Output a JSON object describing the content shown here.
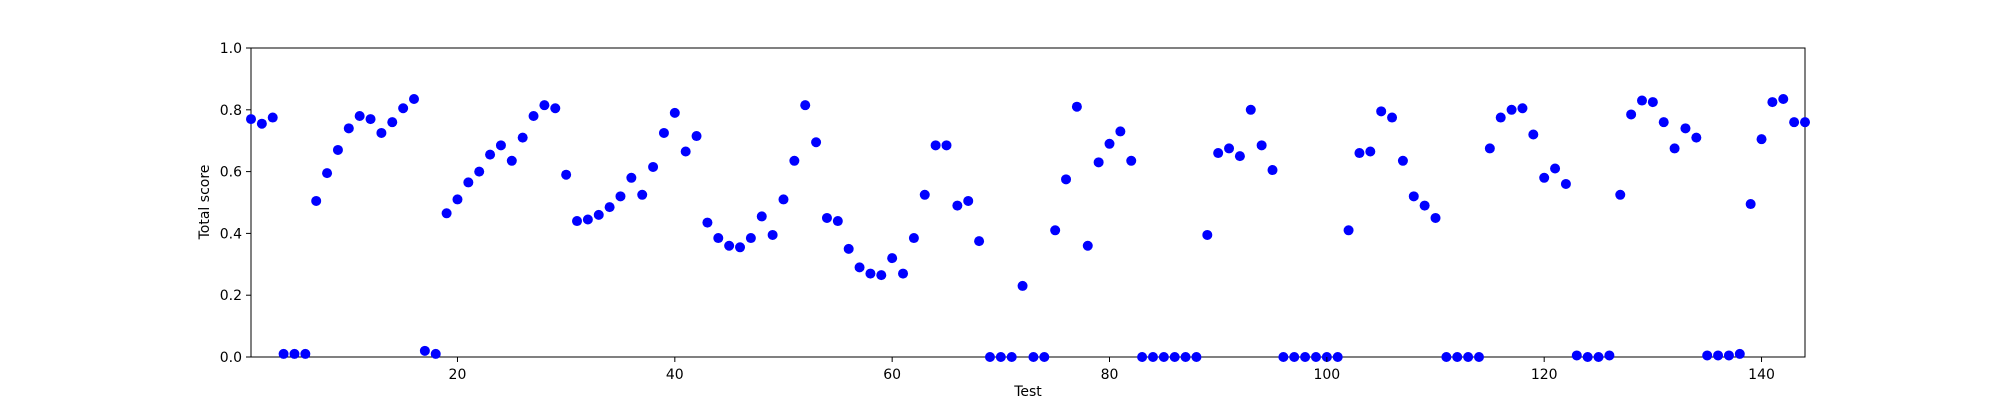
{
  "chart_data": {
    "type": "scatter",
    "title": "",
    "xlabel": "Test",
    "ylabel": "Total score",
    "xlim": [
      1,
      144
    ],
    "ylim": [
      0.0,
      1.0
    ],
    "xticks": [
      20,
      40,
      60,
      80,
      100,
      120,
      140
    ],
    "xtick_labels": [
      "20",
      "40",
      "60",
      "80",
      "100",
      "120",
      "140"
    ],
    "yticks": [
      0.0,
      0.2,
      0.4,
      0.6,
      0.8,
      1.0
    ],
    "ytick_labels": [
      "0.0",
      "0.2",
      "0.4",
      "0.6",
      "0.8",
      "1.0"
    ],
    "grid": false,
    "marker_color": "#0000ff",
    "x": [
      1,
      2,
      3,
      4,
      5,
      6,
      7,
      8,
      9,
      10,
      11,
      12,
      13,
      14,
      15,
      16,
      17,
      18,
      19,
      20,
      21,
      22,
      23,
      24,
      25,
      26,
      27,
      28,
      29,
      30,
      31,
      32,
      33,
      34,
      35,
      36,
      37,
      38,
      39,
      40,
      41,
      42,
      43,
      44,
      45,
      46,
      47,
      48,
      49,
      50,
      51,
      52,
      53,
      54,
      55,
      56,
      57,
      58,
      59,
      60,
      61,
      62,
      63,
      64,
      65,
      66,
      67,
      68,
      69,
      70,
      71,
      72,
      73,
      74,
      75,
      76,
      77,
      78,
      79,
      80,
      81,
      82,
      83,
      84,
      85,
      86,
      87,
      88,
      89,
      90,
      91,
      92,
      93,
      94,
      95,
      96,
      97,
      98,
      99,
      100,
      101,
      102,
      103,
      104,
      105,
      106,
      107,
      108,
      109,
      110,
      111,
      112,
      113,
      114,
      115,
      116,
      117,
      118,
      119,
      120,
      121,
      122,
      123,
      124,
      125,
      126,
      127,
      128,
      129,
      130,
      131,
      132,
      133,
      134,
      135,
      136,
      137,
      138,
      139,
      140,
      141,
      142,
      143,
      144
    ],
    "y": [
      0.77,
      0.755,
      0.775,
      0.01,
      0.01,
      0.01,
      0.505,
      0.595,
      0.67,
      0.74,
      0.78,
      0.77,
      0.725,
      0.76,
      0.805,
      0.835,
      0.02,
      0.01,
      0.465,
      0.51,
      0.565,
      0.6,
      0.655,
      0.685,
      0.635,
      0.71,
      0.78,
      0.815,
      0.805,
      0.59,
      0.44,
      0.445,
      0.46,
      0.485,
      0.52,
      0.58,
      0.525,
      0.615,
      0.725,
      0.79,
      0.665,
      0.715,
      0.435,
      0.385,
      0.36,
      0.355,
      0.385,
      0.455,
      0.395,
      0.51,
      0.635,
      0.815,
      0.695,
      0.45,
      0.44,
      0.35,
      0.29,
      0.27,
      0.265,
      0.32,
      0.27,
      0.385,
      0.525,
      0.685,
      0.685,
      0.49,
      0.505,
      0.375,
      0.0,
      0.0,
      0.0,
      0.23,
      0.0,
      0.0,
      0.41,
      0.575,
      0.81,
      0.36,
      0.63,
      0.69,
      0.73,
      0.635,
      0.0,
      0.0,
      0.0,
      0.0,
      0.0,
      0.0,
      0.395,
      0.66,
      0.675,
      0.65,
      0.8,
      0.685,
      0.605,
      0.0,
      0.0,
      0.0,
      0.0,
      0.0,
      0.0,
      0.41,
      0.66,
      0.665,
      0.795,
      0.775,
      0.635,
      0.52,
      0.49,
      0.45,
      0.0,
      0.0,
      0.0,
      0.0,
      0.675,
      0.775,
      0.8,
      0.805,
      0.72,
      0.58,
      0.61,
      0.56,
      0.005,
      0.0,
      0.0,
      0.005,
      0.525,
      0.785,
      0.83,
      0.825,
      0.76,
      0.675,
      0.74,
      0.71,
      0.005,
      0.005,
      0.005,
      0.01,
      0.495,
      0.705,
      0.825,
      0.835,
      0.76,
      0.76
    ]
  }
}
